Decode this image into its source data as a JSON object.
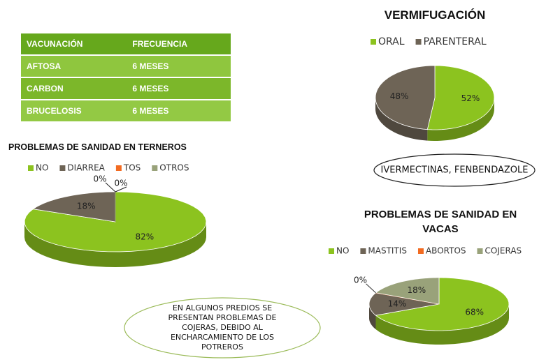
{
  "table": {
    "header": [
      "VACUNACIÓN",
      "FRECUENCIA"
    ],
    "rows": [
      [
        "AFTOSA",
        "6 MESES"
      ],
      [
        "CARBON",
        "6 MESES"
      ],
      [
        "BRUCELOSIS",
        "6 MESES"
      ]
    ]
  },
  "chart_data": [
    {
      "type": "pie",
      "title": "VERMIFUGACIÓN",
      "categories": [
        "ORAL",
        "PARENTERAL"
      ],
      "values": [
        52,
        48
      ],
      "value_labels": [
        "52%",
        "48%"
      ],
      "colors": [
        "#8cc31f",
        "#6e6456"
      ],
      "annotation": "IVERMECTINAS, FENBENDAZOLE"
    },
    {
      "type": "pie",
      "title": "PROBLEMAS DE SANIDAD EN TERNEROS",
      "categories": [
        "NO",
        "DIARREA",
        "TOS",
        "OTROS"
      ],
      "values": [
        82,
        18,
        0,
        0
      ],
      "value_labels": [
        "82%",
        "18%",
        "0%",
        "0%"
      ],
      "colors": [
        "#8cc31f",
        "#6e6456",
        "#f26b21",
        "#99a27a"
      ]
    },
    {
      "type": "pie",
      "title": "PROBLEMAS DE SANIDAD EN VACAS",
      "categories": [
        "NO",
        "MASTITIS",
        "ABORTOS",
        "COJERAS"
      ],
      "values": [
        68,
        14,
        0,
        18
      ],
      "value_labels": [
        "68%",
        "14%",
        "0%",
        "18%"
      ],
      "colors": [
        "#8cc31f",
        "#6e6456",
        "#f26b21",
        "#99a27a"
      ],
      "annotation": [
        "EN ALGUNOS PREDIOS SE",
        "PRESENTAN PROBLEMAS DE",
        "COJERAS, DEBIDO AL",
        "ENCHARCAMIENTO DE LOS",
        "POTREROS"
      ]
    }
  ]
}
